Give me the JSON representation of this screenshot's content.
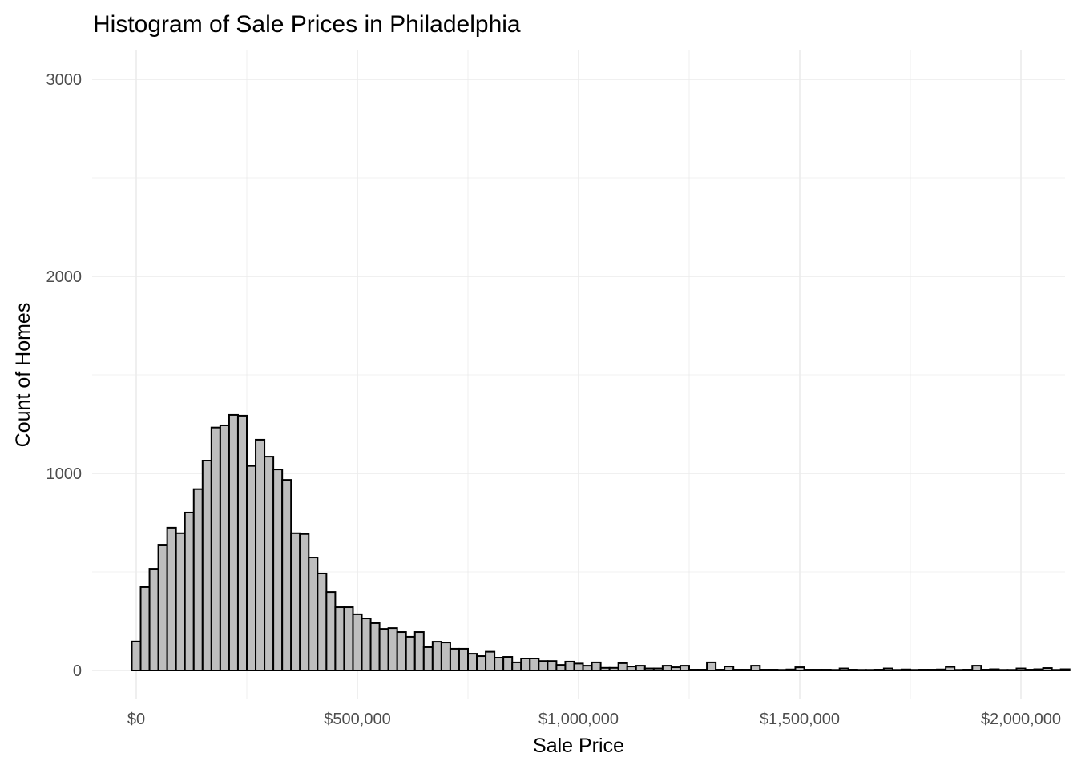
{
  "chart_data": {
    "type": "bar",
    "subtype": "histogram",
    "title": "Histogram of Sale Prices in Philadelphia",
    "xlabel": "Sale Price",
    "ylabel": "Count of Homes",
    "bin_width": 20000,
    "xlim": [
      -100000,
      2100000
    ],
    "ylim": [
      -150,
      3150
    ],
    "grid": true,
    "x_ticks": [
      {
        "value": 0,
        "label": "$0"
      },
      {
        "value": 500000,
        "label": "$500,000"
      },
      {
        "value": 1000000,
        "label": "$1,000,000"
      },
      {
        "value": 1500000,
        "label": "$1,500,000"
      },
      {
        "value": 2000000,
        "label": "$2,000,000"
      }
    ],
    "y_ticks": [
      {
        "value": 0,
        "label": "0"
      },
      {
        "value": 1000,
        "label": "1000"
      },
      {
        "value": 2000,
        "label": "2000"
      },
      {
        "value": 3000,
        "label": "3000"
      }
    ],
    "bin_start_center": 0,
    "counts": [
      147,
      423,
      516,
      638,
      724,
      696,
      801,
      920,
      1065,
      1233,
      1244,
      1297,
      1293,
      1038,
      1171,
      1085,
      1020,
      967,
      696,
      692,
      573,
      492,
      398,
      321,
      321,
      285,
      264,
      240,
      211,
      215,
      195,
      171,
      195,
      118,
      146,
      142,
      110,
      110,
      85,
      73,
      95,
      65,
      69,
      41,
      61,
      61,
      48,
      48,
      28,
      45,
      35,
      24,
      41,
      13,
      13,
      37,
      20,
      24,
      10,
      10,
      24,
      16,
      24,
      4,
      4,
      41,
      4,
      20,
      4,
      4,
      24,
      4,
      4,
      3,
      5,
      16,
      4,
      4,
      4,
      3,
      10,
      4,
      3,
      3,
      4,
      10,
      3,
      5,
      3,
      4,
      4,
      5,
      18,
      3,
      4,
      24,
      4,
      6,
      3,
      3,
      10,
      4,
      6,
      12,
      3,
      6
    ],
    "colors": {
      "bar_fill": "#bebebe",
      "bar_stroke": "#000000",
      "grid": "#ebebeb"
    }
  }
}
